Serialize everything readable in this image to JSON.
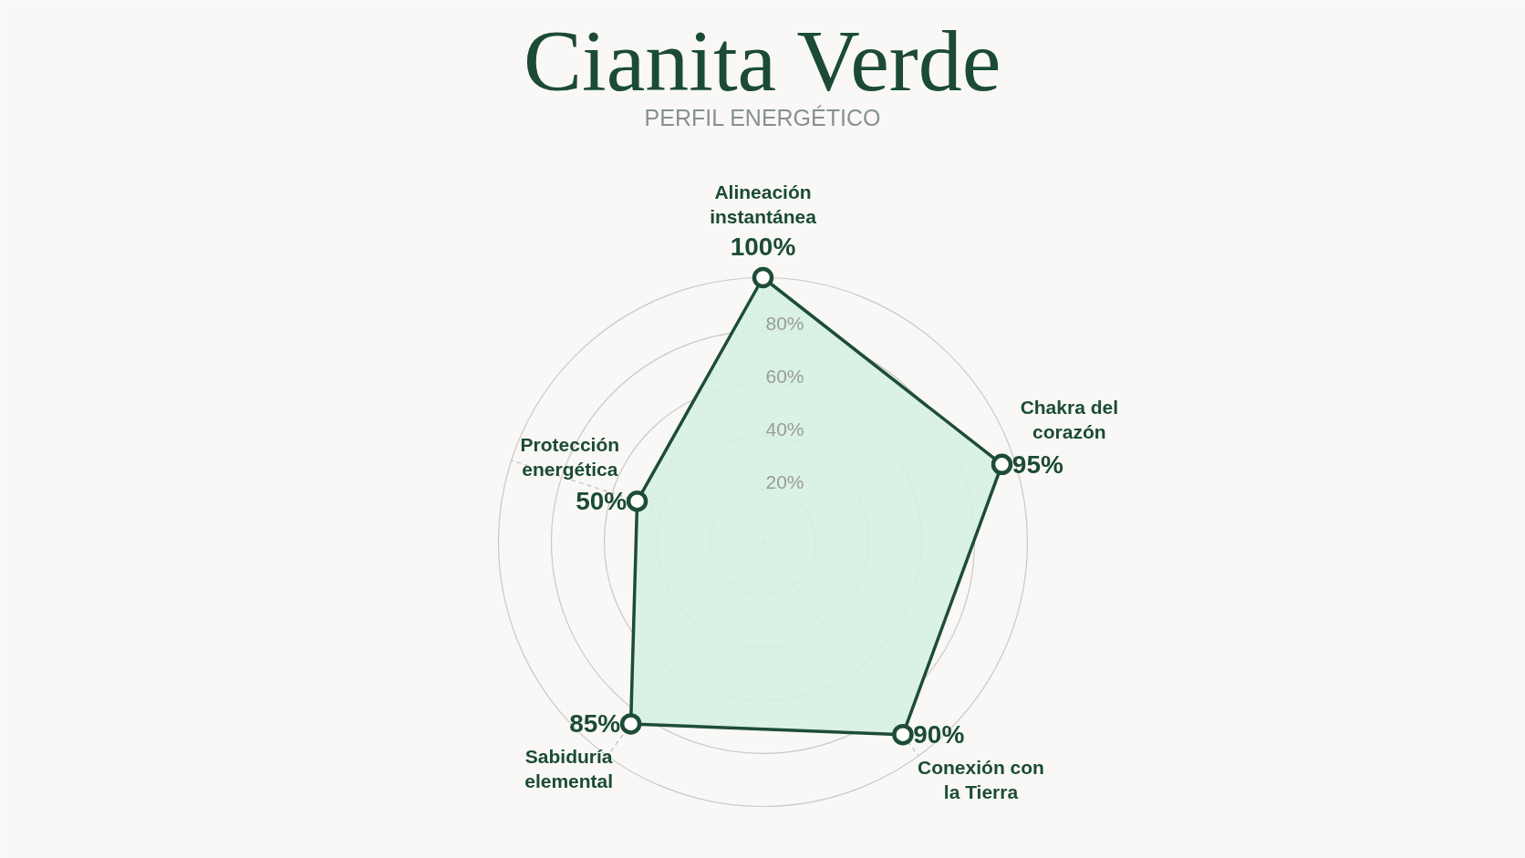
{
  "chart_data": {
    "type": "radar",
    "title": "Cianita Verde",
    "subtitle": "PERFIL ENERGÉTICO",
    "categories": [
      "Alineación instantánea",
      "Chakra del corazón",
      "Conexión con la Tierra",
      "Sabiduría elemental",
      "Protección energética"
    ],
    "series": [
      {
        "color": "#1d4d36",
        "values": [
          100,
          95,
          90,
          85,
          50
        ],
        "value_labels": [
          "100%",
          "95%",
          "90%",
          "85%",
          "50%"
        ]
      }
    ],
    "ylim": [
      0,
      100
    ],
    "yticks": [
      {
        "value": 20,
        "label": "20%"
      },
      {
        "value": 40,
        "label": "40%"
      },
      {
        "value": 60,
        "label": "60%"
      },
      {
        "value": 80,
        "label": "80%"
      }
    ],
    "grid": true,
    "marker": "circle"
  }
}
